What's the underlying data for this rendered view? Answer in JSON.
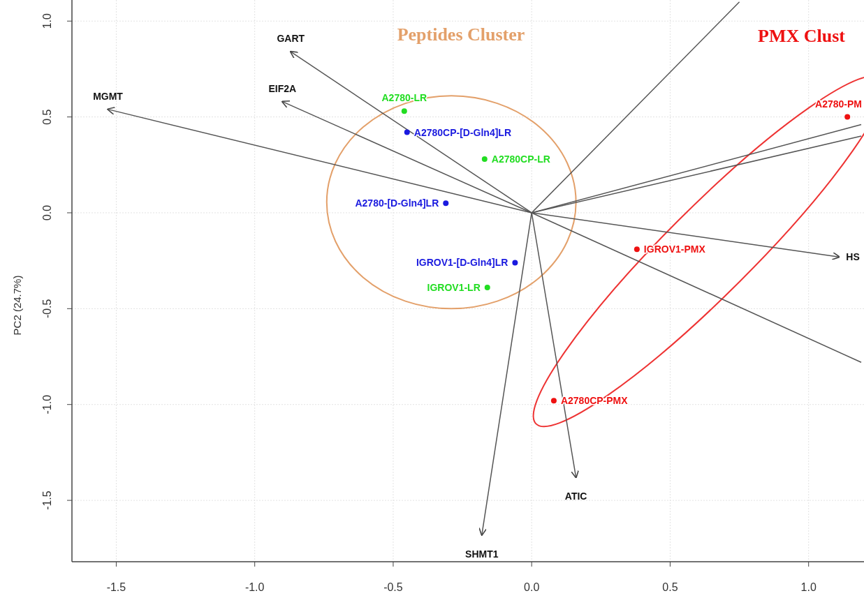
{
  "chart_data": {
    "type": "scatter",
    "ylabel": "PC2 (24.7%)",
    "xlim": [
      -1.66,
      1.2
    ],
    "ylim": [
      -1.82,
      1.11
    ],
    "xticks": [
      -1.5,
      {
        "value": -1,
        "label": "-1.0"
      },
      -0.5,
      {
        "value": 0,
        "label": "0.0"
      },
      0.5,
      {
        "value": 1,
        "label": "1.0"
      }
    ],
    "yticks": [
      -1.5,
      {
        "value": -1,
        "label": "-1.0"
      },
      -0.5,
      {
        "value": 0,
        "label": "0.0"
      },
      0.5,
      {
        "value": 1,
        "label": "1.0"
      }
    ],
    "grid": true,
    "legend": false,
    "marker": "circle",
    "annotations": [
      "Peptides Cluster",
      "PMX Clust"
    ],
    "series": [
      {
        "type": "line",
        "marker": "none",
        "name": "MGMT",
        "color": "#555555",
        "x": [
          0,
          -1.53
        ],
        "values": [
          0,
          0.54
        ]
      },
      {
        "type": "line",
        "marker": "none",
        "name": "GART",
        "color": "#555555",
        "x": [
          0,
          -0.87
        ],
        "values": [
          0,
          0.84
        ]
      },
      {
        "type": "line",
        "marker": "none",
        "name": "EIF2A",
        "color": "#555555",
        "x": [
          0,
          -0.9
        ],
        "values": [
          0,
          0.58
        ]
      },
      {
        "type": "line",
        "marker": "none",
        "name": "HS",
        "color": "#555555",
        "x": [
          0,
          1.11
        ],
        "values": [
          0,
          -0.23
        ]
      },
      {
        "type": "line",
        "marker": "none",
        "name": "SHMT1",
        "color": "#555555",
        "x": [
          0,
          -0.18
        ],
        "values": [
          0,
          -1.68
        ]
      },
      {
        "type": "line",
        "marker": "none",
        "name": "ATIC",
        "color": "#555555",
        "x": [
          0,
          0.16
        ],
        "values": [
          0,
          -1.38
        ]
      },
      {
        "type": "line",
        "marker": "none",
        "color": "#555555",
        "x": [
          0,
          0.75
        ],
        "values": [
          0,
          1.1
        ]
      },
      {
        "type": "line",
        "marker": "none",
        "color": "#555555",
        "x": [
          0,
          1.19
        ],
        "values": [
          0,
          0.46
        ]
      },
      {
        "type": "line",
        "marker": "none",
        "color": "#555555",
        "x": [
          0,
          1.19
        ],
        "values": [
          0,
          0.4
        ]
      },
      {
        "type": "line",
        "marker": "none",
        "color": "#555555",
        "x": [
          0,
          1.19
        ],
        "values": [
          0,
          -0.78
        ]
      },
      {
        "name": "A2780-LR",
        "color": "#22dd22",
        "x": [
          -0.46
        ],
        "values": [
          0.53
        ]
      },
      {
        "name": "A2780CP-[D-Gln4]LR",
        "color": "#1a1adf",
        "x": [
          -0.45
        ],
        "values": [
          0.42
        ]
      },
      {
        "name": "A2780CP-LR",
        "color": "#22dd22",
        "x": [
          -0.17
        ],
        "values": [
          0.28
        ]
      },
      {
        "name": "A2780-[D-Gln4]LR",
        "color": "#1a1adf",
        "x": [
          -0.31
        ],
        "values": [
          0.05
        ]
      },
      {
        "name": "IGROV1-[D-Gln4]LR",
        "color": "#1a1adf",
        "x": [
          -0.06
        ],
        "values": [
          -0.26
        ]
      },
      {
        "name": "IGROV1-LR",
        "color": "#22dd22",
        "x": [
          -0.16
        ],
        "values": [
          -0.39
        ]
      },
      {
        "name": "IGROV1-PMX",
        "color": "#ee1111",
        "x": [
          0.38
        ],
        "values": [
          -0.19
        ]
      },
      {
        "name": "A2780CP-PMX",
        "color": "#ee1111",
        "x": [
          0.08
        ],
        "values": [
          -0.98
        ]
      },
      {
        "name": "A2780-PM",
        "color": "#ee1111",
        "x": [
          1.14
        ],
        "values": [
          0.5
        ]
      }
    ]
  }
}
